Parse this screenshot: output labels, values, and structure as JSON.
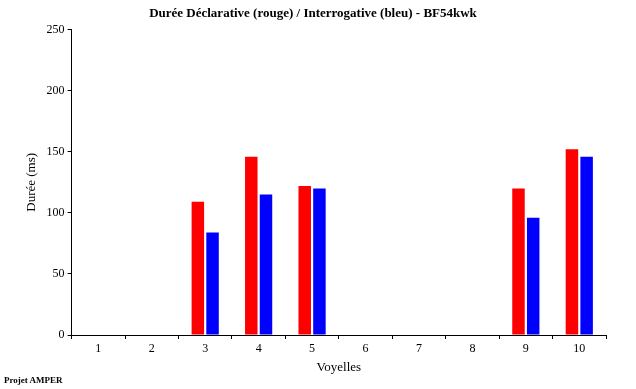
{
  "chart_data": {
    "type": "bar",
    "title": "Durée Déclarative (rouge) / Interrogative (bleu) - BF54kwk",
    "x_label": "Voyelles",
    "y_label": "Durée (ms)",
    "annotation": "Projet AMPER",
    "categories": [
      "1",
      "2",
      "3",
      "4",
      "5",
      "6",
      "7",
      "8",
      "9",
      "10"
    ],
    "series": [
      {
        "color": "#ff0000",
        "values": [
          null,
          null,
          109,
          146,
          122,
          null,
          null,
          null,
          120,
          152
        ]
      },
      {
        "color": "#0000ff",
        "values": [
          null,
          null,
          84,
          115,
          120,
          null,
          null,
          null,
          96,
          146
        ]
      }
    ],
    "ylim": [
      0,
      250
    ],
    "yticks": [
      0,
      50,
      100,
      150,
      200,
      250
    ],
    "grid": false
  }
}
